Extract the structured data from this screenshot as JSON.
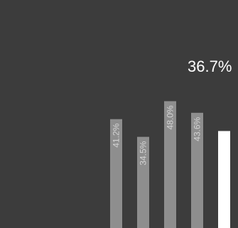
{
  "chart_data": {
    "type": "bar",
    "categories": [
      "",
      "",
      "",
      "",
      ""
    ],
    "values": [
      41.2,
      34.5,
      48.0,
      43.6,
      36.7
    ],
    "data_labels": [
      "41.2%",
      "34.5%",
      "48.0%",
      "43.6%",
      "36.7%"
    ],
    "highlight_index": 4,
    "ylim": [
      0,
      100
    ],
    "grid": false,
    "colors": {
      "background": "#3c3c3c",
      "bar": "#8e8e8e",
      "highlight": "#ffffff",
      "label_on_bar": "#d4d4d4",
      "headline": "#ffffff"
    }
  }
}
